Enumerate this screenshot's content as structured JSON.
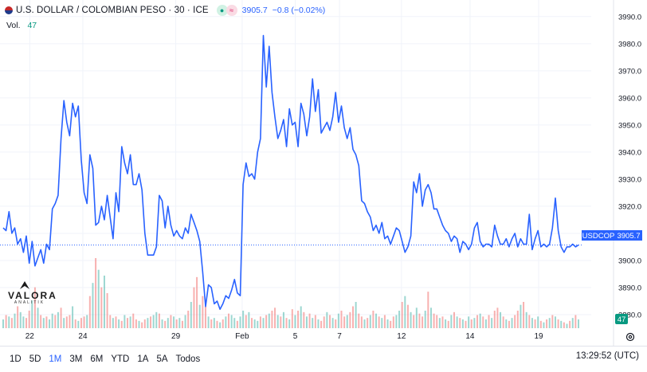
{
  "header": {
    "title": "U.S. DOLLAR / COLOMBIAN PESO · 30 · ICE",
    "price": "3905.7",
    "change": "−0.8 (−0.02%)"
  },
  "volume": {
    "label": "Vol.",
    "value": "47"
  },
  "logo": {
    "name": "VALORA",
    "sub": "ANALITIK"
  },
  "price_label": "USDCOP",
  "last_price_badge": "3905.7",
  "volume_badge": "47",
  "toolbar": {
    "buttons": [
      "1D",
      "5D",
      "1M",
      "3M",
      "6M",
      "YTD",
      "1A",
      "5A",
      "Todos"
    ],
    "active": "1M"
  },
  "time": "13:29:52 (UTC)",
  "colors": {
    "line": "#2962ff",
    "vol_up": "#26a69a",
    "vol_down": "#ef5350",
    "grid": "#f0f3fa"
  },
  "icons": {
    "settings": "gear-icon",
    "flag": "us-flag-icon"
  },
  "chart_data": {
    "type": "line",
    "series_name": "USDCOP",
    "ylim": [
      3875,
      3992
    ],
    "y_ticks": [
      3880,
      3890,
      3900,
      3910,
      3920,
      3930,
      3940,
      3950,
      3960,
      3970,
      3980,
      3990
    ],
    "x_ticks": [
      "22",
      "24",
      "29",
      "Feb",
      "5",
      "7",
      "12",
      "14",
      "19"
    ],
    "last": 3905.7,
    "x": [
      0,
      1,
      2,
      3,
      4,
      5,
      6,
      7,
      8,
      9,
      10,
      11,
      12,
      13,
      14,
      15,
      16,
      17,
      18,
      19,
      20,
      21,
      22,
      23,
      24,
      25,
      26,
      27,
      28,
      29,
      30,
      31,
      32,
      33,
      34,
      35,
      36,
      37,
      38,
      39,
      40,
      41,
      42,
      43,
      44,
      45,
      46,
      47,
      48,
      49,
      50,
      51,
      52,
      53,
      54,
      55,
      56,
      57,
      58,
      59,
      60,
      61,
      62,
      63,
      64,
      65,
      66,
      67,
      68,
      69,
      70,
      71,
      72,
      73,
      74,
      75,
      76,
      77,
      78,
      79,
      80,
      81,
      82,
      83,
      84,
      85,
      86,
      87,
      88,
      89,
      90,
      91,
      92,
      93,
      94,
      95,
      96,
      97,
      98,
      99,
      100,
      101,
      102,
      103,
      104,
      105,
      106,
      107,
      108,
      109,
      110,
      111,
      112,
      113,
      114,
      115,
      116,
      117,
      118,
      119,
      120,
      121,
      122,
      123,
      124,
      125,
      126,
      127,
      128,
      129,
      130,
      131,
      132,
      133,
      134,
      135,
      136,
      137,
      138,
      139,
      140,
      141,
      142,
      143,
      144,
      145,
      146,
      147,
      148,
      149,
      150,
      151,
      152,
      153,
      154,
      155,
      156,
      157,
      158,
      159,
      160,
      161,
      162,
      163,
      164,
      165,
      166,
      167,
      168,
      169,
      170,
      171,
      172,
      173,
      174,
      175,
      176,
      177,
      178,
      179,
      180,
      181,
      182,
      183,
      184,
      185,
      186,
      187,
      188,
      189,
      190,
      191,
      192,
      193,
      194,
      195,
      196,
      197,
      198,
      199
    ],
    "values": [
      3912,
      3911,
      3918,
      3910,
      3912,
      3906,
      3908,
      3903,
      3909,
      3899,
      3907,
      3898,
      3901,
      3904,
      3899,
      3906,
      3904,
      3919,
      3921,
      3924,
      3945,
      3959,
      3951,
      3946,
      3958,
      3953,
      3957,
      3937,
      3925,
      3921,
      3939,
      3934,
      3913,
      3914,
      3920,
      3915,
      3924,
      3916,
      3908,
      3925,
      3918,
      3942,
      3936,
      3932,
      3939,
      3928,
      3928,
      3932,
      3926,
      3910,
      3902,
      3902,
      3902,
      3905,
      3924,
      3922,
      3912,
      3920,
      3913,
      3909,
      3911,
      3909,
      3908,
      3912,
      3910,
      3917,
      3914,
      3911,
      3907,
      3896,
      3883,
      3891,
      3890,
      3884,
      3885,
      3882,
      3884,
      3887,
      3886,
      3889,
      3893,
      3888,
      3887,
      3928,
      3936,
      3931,
      3932,
      3930,
      3940,
      3945,
      3983,
      3964,
      3979,
      3962,
      3953,
      3945,
      3948,
      3952,
      3942,
      3956,
      3950,
      3951,
      3942,
      3958,
      3954,
      3946,
      3953,
      3967,
      3955,
      3963,
      3947,
      3949,
      3951,
      3948,
      3953,
      3962,
      3951,
      3957,
      3949,
      3945,
      3949,
      3941,
      3939,
      3935,
      3922,
      3921,
      3918,
      3916,
      3911,
      3913,
      3910,
      3914,
      3908,
      3909,
      3906,
      3909,
      3912,
      3911,
      3907,
      3903,
      3905,
      3909,
      3929,
      3925,
      3932,
      3920,
      3926,
      3928,
      3925,
      3919,
      3919,
      3916,
      3913,
      3911,
      3910,
      3907,
      3909,
      3908,
      3903,
      3907,
      3906,
      3904,
      3906,
      3912,
      3914,
      3907,
      3905,
      3906,
      3906,
      3905,
      3913,
      3909,
      3906,
      3906,
      3908,
      3905,
      3908,
      3910,
      3905,
      3908,
      3906,
      3906,
      3917,
      3904,
      3908,
      3911,
      3905,
      3906,
      3905,
      3906,
      3912,
      3923,
      3911,
      3905,
      3903,
      3905,
      3905,
      3906,
      3905,
      3905.7
    ],
    "volume": [
      6,
      9,
      8,
      7,
      10,
      15,
      11,
      8,
      7,
      12,
      19,
      28,
      14,
      9,
      7,
      8,
      6,
      10,
      9,
      11,
      14,
      7,
      8,
      9,
      15,
      6,
      5,
      7,
      8,
      9,
      22,
      31,
      48,
      40,
      28,
      36,
      24,
      9,
      7,
      8,
      6,
      5,
      9,
      7,
      8,
      10,
      6,
      5,
      4,
      6,
      7,
      8,
      9,
      11,
      10,
      6,
      5,
      7,
      9,
      8,
      6,
      7,
      5,
      9,
      12,
      18,
      28,
      35,
      16,
      22,
      15,
      8,
      6,
      7,
      5,
      4,
      6,
      8,
      10,
      9,
      7,
      5,
      8,
      12,
      9,
      11,
      7,
      6,
      5,
      8,
      7,
      9,
      10,
      12,
      14,
      9,
      8,
      11,
      7,
      6,
      13,
      9,
      12,
      15,
      11,
      8,
      10,
      7,
      9,
      6,
      5,
      8,
      11,
      9,
      7,
      6,
      10,
      12,
      8,
      9,
      11,
      15,
      18,
      10,
      8,
      6,
      7,
      9,
      12,
      10,
      8,
      7,
      9,
      6,
      5,
      8,
      9,
      12,
      18,
      22,
      16,
      11,
      9,
      14,
      10,
      8,
      12,
      25,
      14,
      10,
      9,
      7,
      8,
      6,
      5,
      9,
      11,
      8,
      7,
      6,
      5,
      8,
      6,
      7,
      9,
      10,
      8,
      6,
      9,
      7,
      12,
      14,
      11,
      8,
      6,
      5,
      7,
      9,
      12,
      16,
      18,
      11,
      9,
      7,
      6,
      8,
      5,
      4,
      6,
      7,
      9,
      8,
      6,
      5,
      4,
      3,
      5,
      7,
      9,
      6
    ],
    "volume_direction": [
      1,
      0,
      1,
      0,
      1,
      0,
      1,
      1,
      0,
      0,
      1,
      0,
      1,
      0,
      1,
      0,
      1,
      1,
      0,
      1,
      0,
      1,
      0,
      0,
      1,
      0,
      1,
      0,
      0,
      1,
      0,
      1,
      0,
      1,
      0,
      1,
      0,
      0,
      1,
      0,
      1,
      0,
      1,
      0,
      1,
      0,
      0,
      1,
      0,
      0,
      1,
      0,
      1,
      1,
      0,
      1,
      0,
      1,
      0,
      1,
      0,
      1,
      0,
      1,
      0,
      1,
      0,
      0,
      1,
      0,
      0,
      1,
      0,
      1,
      0,
      1,
      0,
      1,
      0,
      1,
      1,
      0,
      1,
      1,
      0,
      1,
      0,
      1,
      1,
      0,
      1,
      0,
      1,
      0,
      0,
      1,
      0,
      1,
      0,
      1,
      0,
      1,
      0,
      1,
      0,
      1,
      0,
      1,
      0,
      1,
      0,
      0,
      1,
      0,
      1,
      0,
      1,
      0,
      0,
      1,
      0,
      0,
      1,
      0,
      0,
      1,
      0,
      1,
      0,
      1,
      0,
      1,
      0,
      1,
      0,
      0,
      1,
      1,
      0,
      1,
      0,
      1,
      0,
      1,
      0,
      0,
      1,
      0,
      1,
      0,
      0,
      1,
      0,
      1,
      0,
      1,
      0,
      1,
      0,
      1,
      0,
      1,
      0,
      1,
      0,
      1,
      0,
      1,
      0,
      1,
      0,
      0,
      1,
      0,
      1,
      0,
      1,
      0,
      0,
      1,
      0,
      1,
      0,
      1,
      0,
      1,
      0,
      1,
      0,
      1,
      0,
      1,
      0,
      1,
      0,
      1,
      0,
      1,
      0,
      1
    ],
    "ytick_labels": [
      "3880.0",
      "3890.0",
      "3900.0",
      "3910.0",
      "3920.0",
      "3930.0",
      "3940.0",
      "3950.0",
      "3960.0",
      "3970.0",
      "3980.0",
      "3990.0"
    ]
  }
}
